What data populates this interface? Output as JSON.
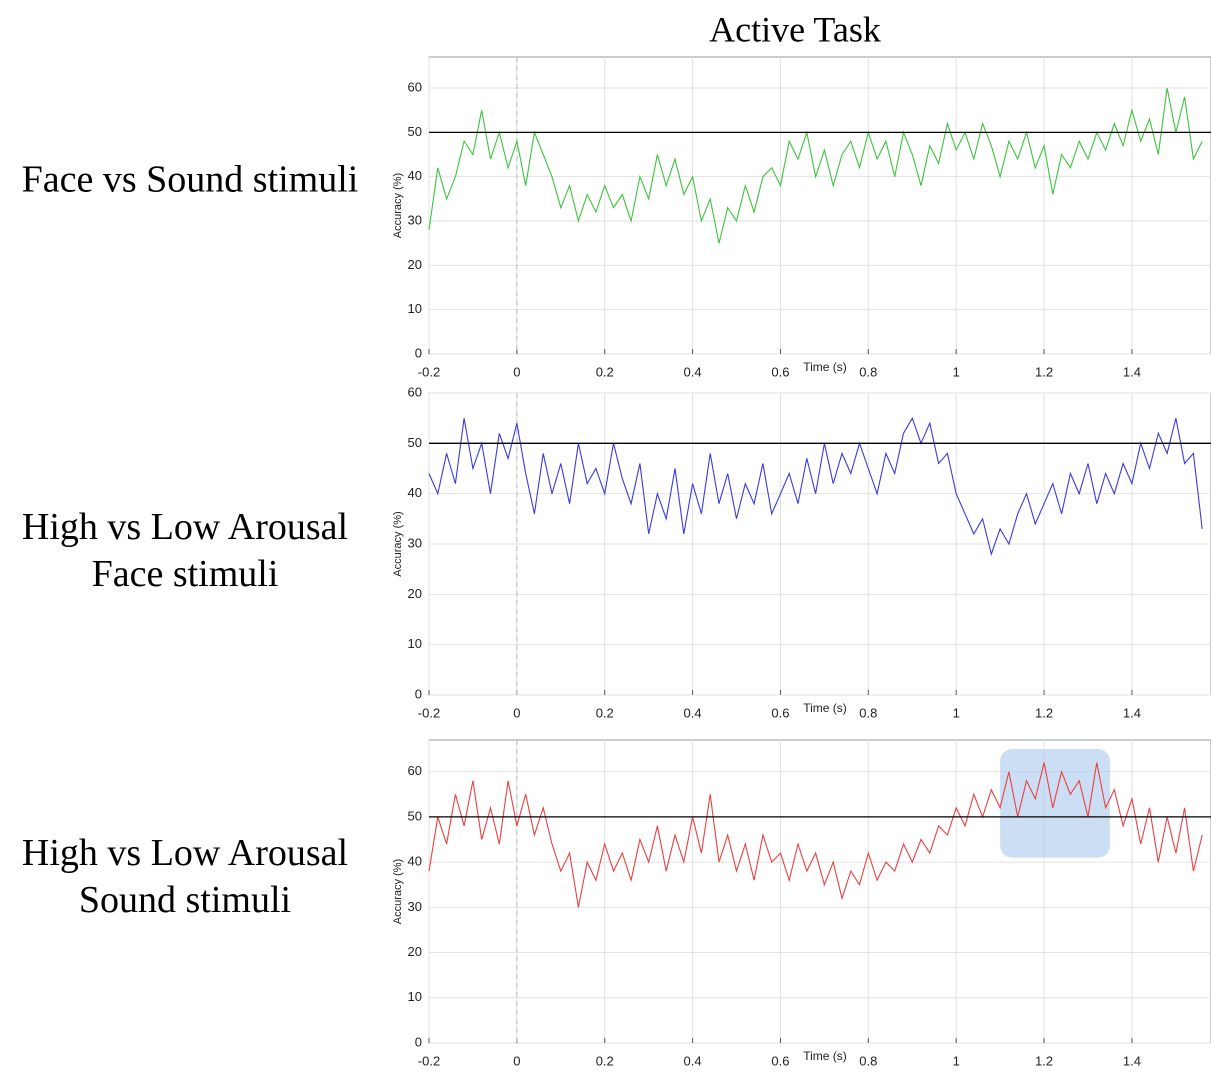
{
  "title": "Active Task",
  "chart_data": [
    {
      "type": "line",
      "row_label": [
        "Face vs Sound stimuli"
      ],
      "xlabel": "Time (s)",
      "ylabel": "Accuracy (%)",
      "xlim": [
        -0.2,
        1.58
      ],
      "ylim": [
        0,
        67
      ],
      "xticks": [
        -0.2,
        0,
        0.2,
        0.4,
        0.6,
        0.8,
        1,
        1.2,
        1.4
      ],
      "yticks": [
        0,
        10,
        20,
        30,
        40,
        50,
        60
      ],
      "grid": true,
      "hline": 50,
      "vline": 0,
      "color": "#3cc43c",
      "x": [
        -0.2,
        -0.18,
        -0.16,
        -0.14,
        -0.12,
        -0.1,
        -0.08,
        -0.06,
        -0.04,
        -0.02,
        0,
        0.02,
        0.04,
        0.06,
        0.08,
        0.1,
        0.12,
        0.14,
        0.16,
        0.18,
        0.2,
        0.22,
        0.24,
        0.26,
        0.28,
        0.3,
        0.32,
        0.34,
        0.36,
        0.38,
        0.4,
        0.42,
        0.44,
        0.46,
        0.48,
        0.5,
        0.52,
        0.54,
        0.56,
        0.58,
        0.6,
        0.62,
        0.64,
        0.66,
        0.68,
        0.7,
        0.72,
        0.74,
        0.76,
        0.78,
        0.8,
        0.82,
        0.84,
        0.86,
        0.88,
        0.9,
        0.92,
        0.94,
        0.96,
        0.98,
        1,
        1.02,
        1.04,
        1.06,
        1.08,
        1.1,
        1.12,
        1.14,
        1.16,
        1.18,
        1.2,
        1.22,
        1.24,
        1.26,
        1.28,
        1.3,
        1.32,
        1.34,
        1.36,
        1.38,
        1.4,
        1.42,
        1.44,
        1.46,
        1.48,
        1.5,
        1.52,
        1.54,
        1.56
      ],
      "values": [
        28,
        42,
        35,
        40,
        48,
        45,
        55,
        44,
        50,
        42,
        48,
        38,
        50,
        45,
        40,
        33,
        38,
        30,
        36,
        32,
        38,
        33,
        36,
        30,
        40,
        35,
        45,
        38,
        44,
        36,
        40,
        30,
        35,
        25,
        33,
        30,
        38,
        32,
        40,
        42,
        38,
        48,
        44,
        50,
        40,
        46,
        38,
        45,
        48,
        42,
        50,
        44,
        48,
        40,
        50,
        45,
        38,
        47,
        43,
        52,
        46,
        50,
        44,
        52,
        47,
        40,
        48,
        44,
        50,
        42,
        47,
        36,
        45,
        42,
        48,
        44,
        50,
        46,
        52,
        47,
        55,
        48,
        53,
        45,
        60,
        50,
        58,
        44,
        48
      ]
    },
    {
      "type": "line",
      "row_label": [
        "High vs Low Arousal",
        "Face stimuli"
      ],
      "xlabel": "Time (s)",
      "ylabel": "Accuracy (%)",
      "xlim": [
        -0.2,
        1.58
      ],
      "ylim": [
        0,
        60
      ],
      "xticks": [
        -0.2,
        0,
        0.2,
        0.4,
        0.6,
        0.8,
        1,
        1.2,
        1.4
      ],
      "yticks": [
        0,
        10,
        20,
        30,
        40,
        50,
        60
      ],
      "grid": true,
      "hline": 50,
      "vline": 0,
      "color": "#3a3ae0",
      "x": [
        -0.2,
        -0.18,
        -0.16,
        -0.14,
        -0.12,
        -0.1,
        -0.08,
        -0.06,
        -0.04,
        -0.02,
        0,
        0.02,
        0.04,
        0.06,
        0.08,
        0.1,
        0.12,
        0.14,
        0.16,
        0.18,
        0.2,
        0.22,
        0.24,
        0.26,
        0.28,
        0.3,
        0.32,
        0.34,
        0.36,
        0.38,
        0.4,
        0.42,
        0.44,
        0.46,
        0.48,
        0.5,
        0.52,
        0.54,
        0.56,
        0.58,
        0.6,
        0.62,
        0.64,
        0.66,
        0.68,
        0.7,
        0.72,
        0.74,
        0.76,
        0.78,
        0.8,
        0.82,
        0.84,
        0.86,
        0.88,
        0.9,
        0.92,
        0.94,
        0.96,
        0.98,
        1,
        1.02,
        1.04,
        1.06,
        1.08,
        1.1,
        1.12,
        1.14,
        1.16,
        1.18,
        1.2,
        1.22,
        1.24,
        1.26,
        1.28,
        1.3,
        1.32,
        1.34,
        1.36,
        1.38,
        1.4,
        1.42,
        1.44,
        1.46,
        1.48,
        1.5,
        1.52,
        1.54,
        1.56
      ],
      "values": [
        44,
        40,
        48,
        42,
        55,
        45,
        50,
        40,
        52,
        47,
        54,
        44,
        36,
        48,
        40,
        46,
        38,
        50,
        42,
        45,
        40,
        50,
        43,
        38,
        46,
        32,
        40,
        35,
        45,
        32,
        42,
        36,
        48,
        38,
        44,
        35,
        42,
        38,
        46,
        36,
        40,
        44,
        38,
        47,
        40,
        50,
        42,
        48,
        44,
        50,
        45,
        40,
        48,
        44,
        52,
        55,
        50,
        54,
        46,
        48,
        40,
        36,
        32,
        35,
        28,
        33,
        30,
        36,
        40,
        34,
        38,
        42,
        36,
        44,
        40,
        46,
        38,
        44,
        40,
        46,
        42,
        50,
        45,
        52,
        48,
        55,
        46,
        48,
        33
      ]
    },
    {
      "type": "line",
      "row_label": [
        "High vs Low Arousal",
        "Sound stimuli"
      ],
      "xlabel": "Time (s)",
      "ylabel": "Accuracy (%)",
      "xlim": [
        -0.2,
        1.58
      ],
      "ylim": [
        0,
        67
      ],
      "xticks": [
        -0.2,
        0,
        0.2,
        0.4,
        0.6,
        0.8,
        1,
        1.2,
        1.4
      ],
      "yticks": [
        0,
        10,
        20,
        30,
        40,
        50,
        60
      ],
      "grid": true,
      "hline": 50,
      "vline": 0,
      "color": "#e84040",
      "highlight": {
        "x": [
          1.1,
          1.35
        ],
        "y": [
          41,
          65
        ],
        "color": "#aac8ec"
      },
      "x": [
        -0.2,
        -0.18,
        -0.16,
        -0.14,
        -0.12,
        -0.1,
        -0.08,
        -0.06,
        -0.04,
        -0.02,
        0,
        0.02,
        0.04,
        0.06,
        0.08,
        0.1,
        0.12,
        0.14,
        0.16,
        0.18,
        0.2,
        0.22,
        0.24,
        0.26,
        0.28,
        0.3,
        0.32,
        0.34,
        0.36,
        0.38,
        0.4,
        0.42,
        0.44,
        0.46,
        0.48,
        0.5,
        0.52,
        0.54,
        0.56,
        0.58,
        0.6,
        0.62,
        0.64,
        0.66,
        0.68,
        0.7,
        0.72,
        0.74,
        0.76,
        0.78,
        0.8,
        0.82,
        0.84,
        0.86,
        0.88,
        0.9,
        0.92,
        0.94,
        0.96,
        0.98,
        1,
        1.02,
        1.04,
        1.06,
        1.08,
        1.1,
        1.12,
        1.14,
        1.16,
        1.18,
        1.2,
        1.22,
        1.24,
        1.26,
        1.28,
        1.3,
        1.32,
        1.34,
        1.36,
        1.38,
        1.4,
        1.42,
        1.44,
        1.46,
        1.48,
        1.5,
        1.52,
        1.54,
        1.56
      ],
      "values": [
        38,
        50,
        44,
        55,
        48,
        58,
        45,
        52,
        44,
        58,
        48,
        55,
        46,
        52,
        44,
        38,
        42,
        30,
        40,
        36,
        44,
        38,
        42,
        36,
        45,
        40,
        48,
        38,
        46,
        40,
        50,
        42,
        55,
        40,
        46,
        38,
        44,
        36,
        46,
        40,
        42,
        36,
        44,
        38,
        42,
        35,
        40,
        32,
        38,
        35,
        42,
        36,
        40,
        38,
        44,
        40,
        45,
        42,
        48,
        46,
        52,
        48,
        55,
        50,
        56,
        52,
        60,
        50,
        58,
        54,
        62,
        52,
        60,
        55,
        58,
        50,
        62,
        52,
        56,
        48,
        54,
        44,
        52,
        40,
        50,
        42,
        52,
        38,
        46
      ]
    }
  ]
}
